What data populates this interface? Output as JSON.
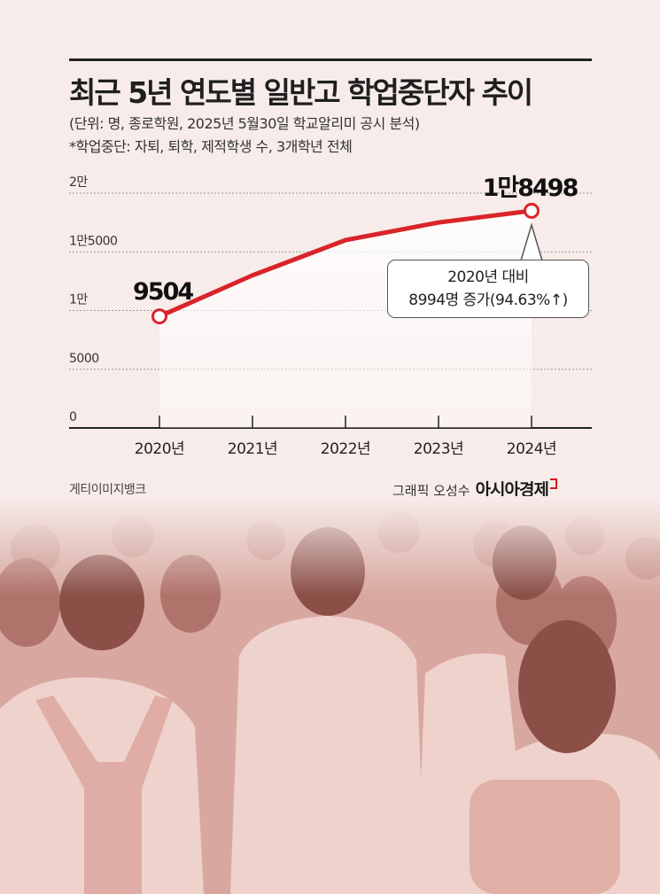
{
  "title": "최근 5년 연도별 일반고 학업중단자 추이",
  "subtitle1": "(단위: 명, 종로학원, 2025년 5월30일 학교알리미 공시 분석)",
  "subtitle2": "*학업중단: 자퇴, 퇴학, 제적학생 수, 3개학년 전체",
  "callout": {
    "line1": "2020년 대비",
    "line2": "8994명 증가(94.63%↑)"
  },
  "credit_left": "게티이미지뱅크",
  "credit_graphic": "그래픽 오성수",
  "credit_brand": "아시아경제",
  "colors": {
    "line": "#d9242a",
    "grid": "#999999",
    "text": "#222222"
  },
  "chart_data": {
    "type": "line",
    "categories": [
      "2020년",
      "2021년",
      "2022년",
      "2023년",
      "2024년"
    ],
    "series": [
      {
        "values": [
          9504,
          13000,
          16000,
          17500,
          18498
        ]
      }
    ],
    "data_labels": [
      {
        "index": 0,
        "text": "9504"
      },
      {
        "index": 4,
        "text": "1만8498"
      }
    ],
    "yticks": [
      {
        "value": 0,
        "label": "0"
      },
      {
        "value": 5000,
        "label": "5000"
      },
      {
        "value": 10000,
        "label": "1만"
      },
      {
        "value": 15000,
        "label": "1만5000"
      },
      {
        "value": 20000,
        "label": "2만"
      }
    ],
    "ylim": [
      0,
      20000
    ],
    "grid": true,
    "legend": "none"
  }
}
